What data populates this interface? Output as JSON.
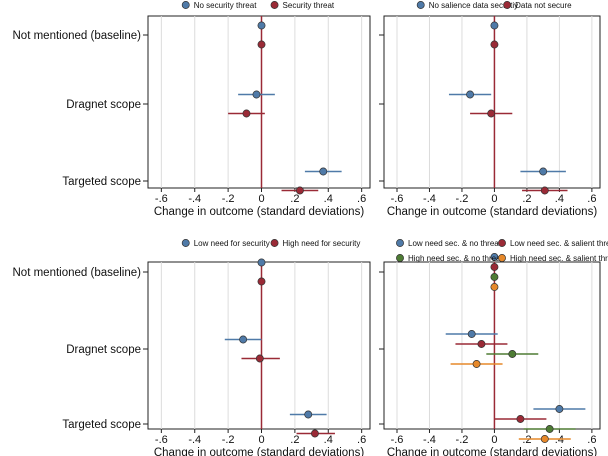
{
  "chart_data": [
    {
      "type": "scatter",
      "subtype": "coefficient-plot",
      "panel": "top-left",
      "categories": [
        "Not mentioned (baseline)",
        "Dragnet scope",
        "Targeted scope"
      ],
      "xlabel": "Change in outcome (standard deviations)",
      "xlim": [
        -0.68,
        0.65
      ],
      "xticks": [
        -0.6,
        -0.4,
        -0.2,
        0,
        0.2,
        0.4,
        0.6
      ],
      "xtick_labels": [
        "-.6",
        "-.4",
        "-.2",
        "0",
        ".2",
        ".4",
        ".6"
      ],
      "grid": "vertical",
      "legend_position": "top",
      "series": [
        {
          "name": "No security threat",
          "color": "#4f7aa8",
          "points": [
            {
              "category": "Not mentioned (baseline)",
              "estimate": 0.0,
              "ci": [
                0.0,
                0.0
              ]
            },
            {
              "category": "Dragnet scope",
              "estimate": -0.03,
              "ci": [
                -0.14,
                0.08
              ]
            },
            {
              "category": "Targeted scope",
              "estimate": 0.37,
              "ci": [
                0.26,
                0.48
              ]
            }
          ]
        },
        {
          "name": "Security threat",
          "color": "#9a2a36",
          "points": [
            {
              "category": "Not mentioned (baseline)",
              "estimate": 0.0,
              "ci": [
                0.0,
                0.0
              ]
            },
            {
              "category": "Dragnet scope",
              "estimate": -0.09,
              "ci": [
                -0.2,
                0.02
              ]
            },
            {
              "category": "Targeted scope",
              "estimate": 0.23,
              "ci": [
                0.12,
                0.34
              ]
            }
          ]
        }
      ]
    },
    {
      "type": "scatter",
      "subtype": "coefficient-plot",
      "panel": "top-right",
      "categories": [
        "Not mentioned (baseline)",
        "Dragnet scope",
        "Targeted scope"
      ],
      "xlabel": "Change in outcome (standard deviations)",
      "xlim": [
        -0.68,
        0.65
      ],
      "xticks": [
        -0.6,
        -0.4,
        -0.2,
        0,
        0.2,
        0.4,
        0.6
      ],
      "xtick_labels": [
        "-.6",
        "-.4",
        "-.2",
        "0",
        ".2",
        ".4",
        ".6"
      ],
      "grid": "vertical",
      "legend_position": "top",
      "series": [
        {
          "name": "No salience data securtiy",
          "color": "#4f7aa8",
          "points": [
            {
              "category": "Not mentioned (baseline)",
              "estimate": 0.0,
              "ci": [
                0.0,
                0.0
              ]
            },
            {
              "category": "Dragnet scope",
              "estimate": -0.15,
              "ci": [
                -0.28,
                -0.02
              ]
            },
            {
              "category": "Targeted scope",
              "estimate": 0.3,
              "ci": [
                0.16,
                0.44
              ]
            }
          ]
        },
        {
          "name": "Data not secure",
          "color": "#9a2a36",
          "points": [
            {
              "category": "Not mentioned (baseline)",
              "estimate": 0.0,
              "ci": [
                0.0,
                0.0
              ]
            },
            {
              "category": "Dragnet scope",
              "estimate": -0.02,
              "ci": [
                -0.15,
                0.11
              ]
            },
            {
              "category": "Targeted scope",
              "estimate": 0.31,
              "ci": [
                0.17,
                0.45
              ]
            }
          ]
        }
      ]
    },
    {
      "type": "scatter",
      "subtype": "coefficient-plot",
      "panel": "bottom-left",
      "categories": [
        "Not mentioned (baseline)",
        "Dragnet scope",
        "Targeted scope"
      ],
      "xlabel": "Change in outcome (standard deviations)",
      "xlim": [
        -0.68,
        0.65
      ],
      "xticks": [
        -0.6,
        -0.4,
        -0.2,
        0,
        0.2,
        0.4,
        0.6
      ],
      "xtick_labels": [
        "-.6",
        "-.4",
        "-.2",
        "0",
        ".2",
        ".4",
        ".6"
      ],
      "grid": "vertical",
      "legend_position": "top",
      "series": [
        {
          "name": "Low need for security",
          "color": "#4f7aa8",
          "points": [
            {
              "category": "Not mentioned (baseline)",
              "estimate": 0.0,
              "ci": [
                0.0,
                0.0
              ]
            },
            {
              "category": "Dragnet scope",
              "estimate": -0.11,
              "ci": [
                -0.22,
                0.0
              ]
            },
            {
              "category": "Targeted scope",
              "estimate": 0.28,
              "ci": [
                0.17,
                0.39
              ]
            }
          ]
        },
        {
          "name": "High need for security",
          "color": "#9a2a36",
          "points": [
            {
              "category": "Not mentioned (baseline)",
              "estimate": 0.0,
              "ci": [
                0.0,
                0.0
              ]
            },
            {
              "category": "Dragnet scope",
              "estimate": -0.01,
              "ci": [
                -0.12,
                0.11
              ]
            },
            {
              "category": "Targeted scope",
              "estimate": 0.32,
              "ci": [
                0.21,
                0.44
              ]
            }
          ]
        }
      ]
    },
    {
      "type": "scatter",
      "subtype": "coefficient-plot",
      "panel": "bottom-right",
      "categories": [
        "Not mentioned (baseline)",
        "Dragnet scope",
        "Targeted scope"
      ],
      "xlabel": "Change in outcome (standard deviations)",
      "xlim": [
        -0.68,
        0.65
      ],
      "xticks": [
        -0.6,
        -0.4,
        -0.2,
        0,
        0.2,
        0.4,
        0.6
      ],
      "xtick_labels": [
        "-.6",
        "-.4",
        "-.2",
        "0",
        ".2",
        ".4",
        ".6"
      ],
      "grid": "vertical",
      "legend_position": "top",
      "series": [
        {
          "name": "Low need sec. & no threat",
          "color": "#4f7aa8",
          "points": [
            {
              "category": "Not mentioned (baseline)",
              "estimate": 0.0,
              "ci": [
                0.0,
                0.0
              ]
            },
            {
              "category": "Dragnet scope",
              "estimate": -0.14,
              "ci": [
                -0.3,
                0.02
              ]
            },
            {
              "category": "Targeted scope",
              "estimate": 0.4,
              "ci": [
                0.24,
                0.56
              ]
            }
          ]
        },
        {
          "name": "Low need sec. & salient threat",
          "color": "#9a2a36",
          "points": [
            {
              "category": "Not mentioned (baseline)",
              "estimate": 0.0,
              "ci": [
                0.0,
                0.0
              ]
            },
            {
              "category": "Dragnet scope",
              "estimate": -0.08,
              "ci": [
                -0.24,
                0.08
              ]
            },
            {
              "category": "Targeted scope",
              "estimate": 0.16,
              "ci": [
                0.0,
                0.32
              ]
            }
          ]
        },
        {
          "name": "High need sec. & no threat",
          "color": "#4e7c34",
          "points": [
            {
              "category": "Not mentioned (baseline)",
              "estimate": 0.0,
              "ci": [
                0.0,
                0.0
              ]
            },
            {
              "category": "Dragnet scope",
              "estimate": 0.11,
              "ci": [
                -0.05,
                0.27
              ]
            },
            {
              "category": "Targeted scope",
              "estimate": 0.34,
              "ci": [
                0.18,
                0.5
              ]
            }
          ]
        },
        {
          "name": "High need sec. & salient threat",
          "color": "#e6882a",
          "points": [
            {
              "category": "Not mentioned (baseline)",
              "estimate": 0.0,
              "ci": [
                0.0,
                0.0
              ]
            },
            {
              "category": "Dragnet scope",
              "estimate": -0.11,
              "ci": [
                -0.27,
                0.05
              ]
            },
            {
              "category": "Targeted scope",
              "estimate": 0.31,
              "ci": [
                0.15,
                0.47
              ]
            }
          ]
        }
      ]
    }
  ]
}
